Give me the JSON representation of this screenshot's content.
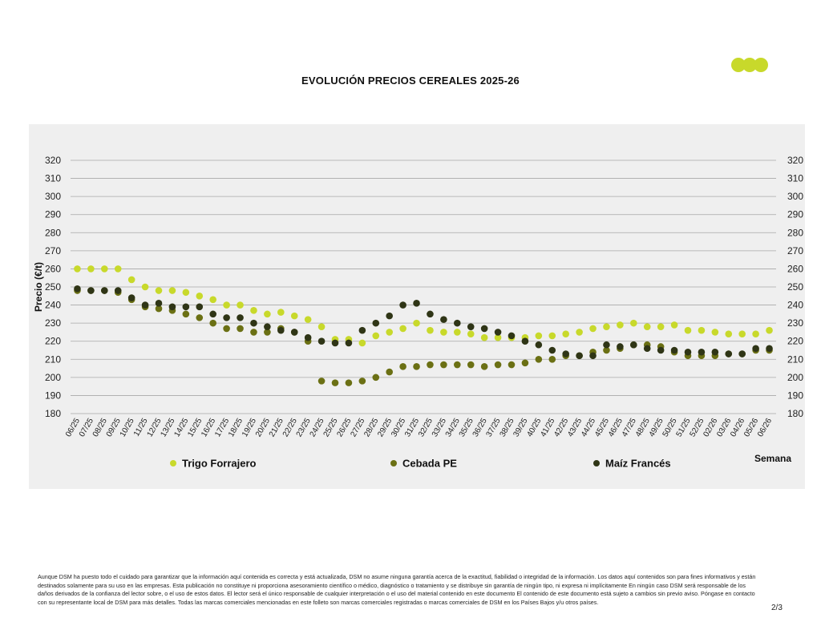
{
  "logo": {
    "colors": [
      "#c8d92b",
      "#c8d92b",
      "#c8d92b"
    ]
  },
  "page_title": "EVOLUCIÓN PRECIOS CEREALES 2025-26",
  "chart_data": {
    "type": "scatter",
    "title": "EVOLUCIÓN PRECIOS CEREALES 2025-26",
    "ylabel": "Precio (€/t)",
    "xlabel": "Semana",
    "ylim": [
      180,
      320
    ],
    "yticks": [
      180,
      190,
      200,
      210,
      220,
      230,
      240,
      250,
      260,
      270,
      280,
      290,
      300,
      310,
      320
    ],
    "grid": true,
    "legend_position": "bottom",
    "categories": [
      "06/25",
      "07/25",
      "08/25",
      "09/25",
      "10/25",
      "11/25",
      "12/25",
      "13/25",
      "14/25",
      "15/25",
      "16/25",
      "17/25",
      "18/25",
      "19/25",
      "20/25",
      "21/25",
      "22/25",
      "23/25",
      "24/25",
      "25/25",
      "26/25",
      "27/25",
      "28/25",
      "29/25",
      "30/25",
      "31/25",
      "32/25",
      "33/25",
      "34/25",
      "35/25",
      "36/25",
      "37/25",
      "38/25",
      "39/25",
      "40/25",
      "41/25",
      "42/25",
      "43/25",
      "44/25",
      "45/25",
      "46/25",
      "47/25",
      "48/25",
      "49/25",
      "50/25",
      "51/25",
      "52/25",
      "02/26",
      "03/26",
      "04/26",
      "05/26",
      "06/26"
    ],
    "series": [
      {
        "name": "Trigo Forrajero",
        "color": "#c8d92b",
        "values": [
          260,
          260,
          260,
          260,
          254,
          250,
          248,
          248,
          247,
          245,
          243,
          240,
          240,
          237,
          235,
          236,
          234,
          232,
          228,
          221,
          221,
          219,
          223,
          225,
          227,
          230,
          226,
          225,
          225,
          224,
          222,
          222,
          222,
          222,
          223,
          223,
          224,
          225,
          227,
          228,
          229,
          230,
          228,
          228,
          229,
          226,
          226,
          225,
          224,
          224,
          224,
          226
        ]
      },
      {
        "name": "Cebada PE",
        "color": "#6b7014",
        "values": [
          248,
          248,
          248,
          247,
          243,
          239,
          238,
          237,
          235,
          233,
          230,
          227,
          227,
          225,
          225,
          227,
          225,
          220,
          198,
          197,
          197,
          198,
          200,
          203,
          206,
          206,
          207,
          207,
          207,
          207,
          206,
          207,
          207,
          208,
          210,
          210,
          212,
          212,
          214,
          215,
          216,
          218,
          218,
          217,
          214,
          212,
          212,
          212,
          213,
          213,
          215,
          215
        ]
      },
      {
        "name": "Maíz Francés",
        "color": "#2f3516",
        "values": [
          249,
          248,
          248,
          248,
          244,
          240,
          241,
          239,
          239,
          239,
          235,
          233,
          233,
          230,
          228,
          226,
          225,
          222,
          220,
          219,
          219,
          226,
          230,
          234,
          240,
          241,
          235,
          232,
          230,
          228,
          227,
          225,
          223,
          220,
          218,
          215,
          213,
          212,
          212,
          218,
          217,
          218,
          216,
          215,
          215,
          214,
          214,
          214,
          213,
          213,
          216,
          216
        ]
      }
    ]
  },
  "disclaimer": "Aunque DSM ha puesto todo el cuidado para garantizar que la información aquí contenida es correcta y está actualizada, DSM no asume ninguna garantía acerca de la exactitud, fiabilidad o integridad de la información. Los datos aquí contenidos son para fines informativos y están destinados solamente para su uso en las empresas. Esta publicación no constituye ni proporciona asesoramiento científico o médico, diagnóstico o tratamiento y se distribuye sin garantía de ningún tipo, ni expresa ni implícitamente En ningún caso DSM será responsable de los daños derivados de la confianza del lector sobre, o el uso de estos datos. El lector será el único responsable de cualquier interpretación o el uso del material contenido en este documento El contenido de este documento está sujeto a cambios sin previo aviso. Póngase en contacto con su representante local de DSM para más detalles. Todas las marcas comerciales mencionadas en este folleto son marcas comerciales registradas o marcas comerciales de DSM en los Países Bajos y/u otros países.",
  "page_number": "2/3"
}
